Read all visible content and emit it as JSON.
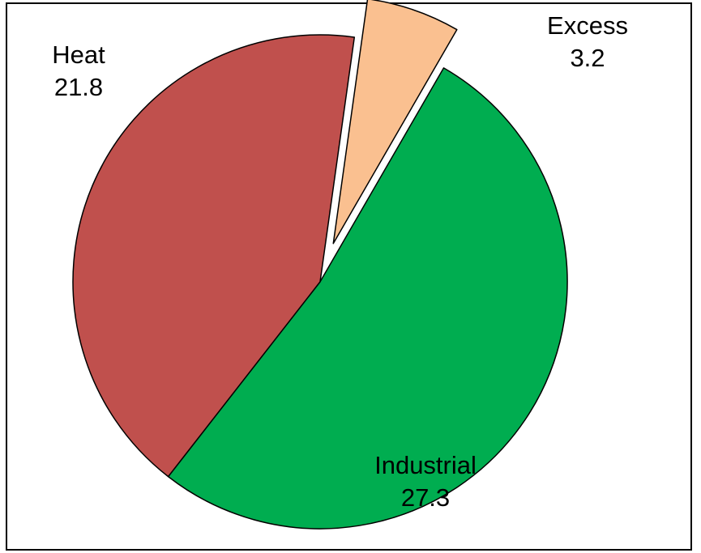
{
  "chart_data": {
    "type": "pie",
    "title": "",
    "legend": "none",
    "slices": [
      {
        "label": "Industrial",
        "value": 27.3,
        "value_label": "27.3",
        "color": "#00AD50",
        "exploded": false
      },
      {
        "label": "Heat",
        "value": 21.8,
        "value_label": "21.8",
        "color": "#C0504D",
        "exploded": false
      },
      {
        "label": "Excess",
        "value": 3.2,
        "value_label": "3.2",
        "color": "#FAC090",
        "exploded": true
      }
    ]
  },
  "colors": {
    "border": "#000000",
    "slice_outline": "#000000",
    "background": "#ffffff"
  }
}
